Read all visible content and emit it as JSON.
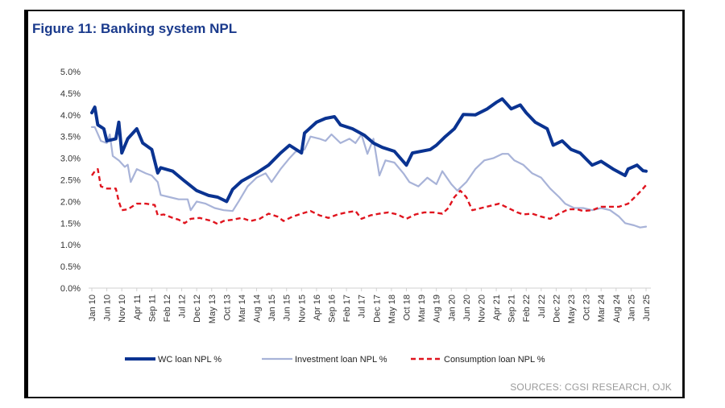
{
  "figure": {
    "title": "Figure 11: Banking system NPL",
    "source": "SOURCES: CGSI RESEARCH, OJK"
  },
  "colors": {
    "wc": "#0a3391",
    "investment": "#a8b3d8",
    "consumption": "#e0141e",
    "title": "#1a3a8c",
    "source": "#9a9a9a"
  },
  "chart_data": {
    "type": "line",
    "title": "Figure 11: Banking system NPL",
    "xlabel": "",
    "ylabel": "",
    "ylim": [
      0,
      5.0
    ],
    "yticks": [
      "0.0%",
      "0.5%",
      "1.0%",
      "1.5%",
      "2.0%",
      "2.5%",
      "3.0%",
      "3.5%",
      "4.0%",
      "4.5%",
      "5.0%"
    ],
    "x_start": "Jan 10",
    "x_end": "Jun 25",
    "x_tick_interval_months": 5,
    "xticks": [
      "Jan 10",
      "Jun 10",
      "Nov 10",
      "Apr 11",
      "Sep 11",
      "Feb 12",
      "Jul 12",
      "Dec 12",
      "May 13",
      "Oct 13",
      "Mar 14",
      "Aug 14",
      "Jan 15",
      "Jun 15",
      "Nov 15",
      "Apr 16",
      "Sep 16",
      "Feb 17",
      "Jul 17",
      "Dec 17",
      "May 18",
      "Oct 18",
      "Mar 19",
      "Aug 19",
      "Jan 20",
      "Jun 20",
      "Nov 20",
      "Apr 21",
      "Sep 21",
      "Feb 22",
      "Jul 22",
      "Dec 22",
      "May 23",
      "Oct 23",
      "Mar 24",
      "Aug 24",
      "Jan 25",
      "Jun 25"
    ],
    "legend_position": "bottom",
    "grid": false,
    "series": [
      {
        "name": "WC loan NPL %",
        "style": "solid-thick",
        "points_month_index_value": [
          [
            0,
            4.05
          ],
          [
            1,
            4.18
          ],
          [
            2,
            3.77
          ],
          [
            4,
            3.68
          ],
          [
            5,
            3.4
          ],
          [
            8,
            3.45
          ],
          [
            9,
            3.83
          ],
          [
            10,
            3.12
          ],
          [
            12,
            3.45
          ],
          [
            15,
            3.68
          ],
          [
            17,
            3.35
          ],
          [
            20,
            3.2
          ],
          [
            22,
            2.66
          ],
          [
            23,
            2.78
          ],
          [
            27,
            2.7
          ],
          [
            31,
            2.47
          ],
          [
            35,
            2.25
          ],
          [
            39,
            2.14
          ],
          [
            42,
            2.1
          ],
          [
            45,
            2.0
          ],
          [
            47,
            2.28
          ],
          [
            50,
            2.47
          ],
          [
            55,
            2.66
          ],
          [
            59,
            2.84
          ],
          [
            63,
            3.12
          ],
          [
            66,
            3.3
          ],
          [
            70,
            3.12
          ],
          [
            71,
            3.58
          ],
          [
            75,
            3.83
          ],
          [
            78,
            3.92
          ],
          [
            81,
            3.96
          ],
          [
            83,
            3.77
          ],
          [
            87,
            3.68
          ],
          [
            91,
            3.53
          ],
          [
            94,
            3.35
          ],
          [
            97,
            3.25
          ],
          [
            101,
            3.16
          ],
          [
            105,
            2.84
          ],
          [
            107,
            3.12
          ],
          [
            113,
            3.2
          ],
          [
            115,
            3.3
          ],
          [
            118,
            3.5
          ],
          [
            121,
            3.68
          ],
          [
            124,
            4.01
          ],
          [
            128,
            4.0
          ],
          [
            132,
            4.14
          ],
          [
            135,
            4.29
          ],
          [
            137,
            4.37
          ],
          [
            140,
            4.14
          ],
          [
            143,
            4.23
          ],
          [
            145,
            4.05
          ],
          [
            148,
            3.83
          ],
          [
            152,
            3.68
          ],
          [
            154,
            3.3
          ],
          [
            157,
            3.4
          ],
          [
            160,
            3.2
          ],
          [
            163,
            3.12
          ],
          [
            167,
            2.84
          ],
          [
            170,
            2.93
          ],
          [
            174,
            2.75
          ],
          [
            178,
            2.6
          ],
          [
            179,
            2.75
          ],
          [
            182,
            2.84
          ],
          [
            184,
            2.71
          ],
          [
            185,
            2.7
          ]
        ]
      },
      {
        "name": "Investment loan NPL %",
        "style": "solid-light",
        "points_month_index_value": [
          [
            0,
            3.72
          ],
          [
            1,
            3.72
          ],
          [
            3,
            3.4
          ],
          [
            5,
            3.35
          ],
          [
            6,
            3.55
          ],
          [
            7,
            3.05
          ],
          [
            9,
            2.95
          ],
          [
            11,
            2.8
          ],
          [
            12,
            2.85
          ],
          [
            13,
            2.45
          ],
          [
            15,
            2.75
          ],
          [
            18,
            2.65
          ],
          [
            20,
            2.6
          ],
          [
            22,
            2.45
          ],
          [
            23,
            2.15
          ],
          [
            26,
            2.1
          ],
          [
            29,
            2.05
          ],
          [
            32,
            2.05
          ],
          [
            33,
            1.8
          ],
          [
            35,
            2.0
          ],
          [
            38,
            1.95
          ],
          [
            41,
            1.85
          ],
          [
            44,
            1.8
          ],
          [
            47,
            1.78
          ],
          [
            49,
            2.0
          ],
          [
            52,
            2.35
          ],
          [
            55,
            2.55
          ],
          [
            58,
            2.65
          ],
          [
            60,
            2.45
          ],
          [
            63,
            2.75
          ],
          [
            66,
            3.0
          ],
          [
            68,
            3.15
          ],
          [
            71,
            3.2
          ],
          [
            73,
            3.5
          ],
          [
            76,
            3.45
          ],
          [
            78,
            3.4
          ],
          [
            80,
            3.55
          ],
          [
            83,
            3.35
          ],
          [
            86,
            3.45
          ],
          [
            88,
            3.35
          ],
          [
            90,
            3.55
          ],
          [
            92,
            3.1
          ],
          [
            94,
            3.45
          ],
          [
            96,
            2.6
          ],
          [
            98,
            2.95
          ],
          [
            101,
            2.9
          ],
          [
            104,
            2.65
          ],
          [
            106,
            2.45
          ],
          [
            109,
            2.35
          ],
          [
            112,
            2.55
          ],
          [
            115,
            2.4
          ],
          [
            117,
            2.7
          ],
          [
            120,
            2.4
          ],
          [
            122,
            2.25
          ],
          [
            125,
            2.45
          ],
          [
            128,
            2.75
          ],
          [
            131,
            2.95
          ],
          [
            134,
            3.0
          ],
          [
            137,
            3.1
          ],
          [
            139,
            3.1
          ],
          [
            141,
            2.95
          ],
          [
            144,
            2.85
          ],
          [
            147,
            2.65
          ],
          [
            150,
            2.55
          ],
          [
            153,
            2.3
          ],
          [
            156,
            2.1
          ],
          [
            158,
            1.95
          ],
          [
            161,
            1.85
          ],
          [
            164,
            1.85
          ],
          [
            167,
            1.8
          ],
          [
            170,
            1.85
          ],
          [
            173,
            1.8
          ],
          [
            176,
            1.65
          ],
          [
            178,
            1.5
          ],
          [
            181,
            1.45
          ],
          [
            183,
            1.4
          ],
          [
            185,
            1.42
          ]
        ]
      },
      {
        "name": "Consumption loan NPL %",
        "style": "dashed",
        "points_month_index_value": [
          [
            0,
            2.6
          ],
          [
            1,
            2.7
          ],
          [
            2,
            2.75
          ],
          [
            3,
            2.35
          ],
          [
            5,
            2.3
          ],
          [
            8,
            2.3
          ],
          [
            9,
            2.0
          ],
          [
            10,
            1.8
          ],
          [
            12,
            1.82
          ],
          [
            15,
            1.95
          ],
          [
            18,
            1.95
          ],
          [
            21,
            1.92
          ],
          [
            22,
            1.68
          ],
          [
            24,
            1.7
          ],
          [
            27,
            1.62
          ],
          [
            29,
            1.58
          ],
          [
            31,
            1.5
          ],
          [
            33,
            1.6
          ],
          [
            36,
            1.62
          ],
          [
            40,
            1.55
          ],
          [
            42,
            1.48
          ],
          [
            44,
            1.55
          ],
          [
            47,
            1.58
          ],
          [
            50,
            1.62
          ],
          [
            53,
            1.55
          ],
          [
            56,
            1.6
          ],
          [
            59,
            1.72
          ],
          [
            62,
            1.65
          ],
          [
            64,
            1.55
          ],
          [
            67,
            1.65
          ],
          [
            70,
            1.72
          ],
          [
            73,
            1.78
          ],
          [
            76,
            1.68
          ],
          [
            79,
            1.62
          ],
          [
            82,
            1.7
          ],
          [
            85,
            1.75
          ],
          [
            88,
            1.78
          ],
          [
            90,
            1.6
          ],
          [
            93,
            1.68
          ],
          [
            96,
            1.72
          ],
          [
            99,
            1.75
          ],
          [
            102,
            1.7
          ],
          [
            105,
            1.6
          ],
          [
            108,
            1.7
          ],
          [
            111,
            1.75
          ],
          [
            114,
            1.75
          ],
          [
            117,
            1.72
          ],
          [
            119,
            1.85
          ],
          [
            121,
            2.1
          ],
          [
            123,
            2.25
          ],
          [
            125,
            2.1
          ],
          [
            127,
            1.8
          ],
          [
            130,
            1.85
          ],
          [
            133,
            1.9
          ],
          [
            136,
            1.95
          ],
          [
            139,
            1.85
          ],
          [
            142,
            1.75
          ],
          [
            144,
            1.7
          ],
          [
            147,
            1.72
          ],
          [
            150,
            1.65
          ],
          [
            153,
            1.6
          ],
          [
            156,
            1.72
          ],
          [
            159,
            1.82
          ],
          [
            162,
            1.82
          ],
          [
            164,
            1.78
          ],
          [
            167,
            1.8
          ],
          [
            170,
            1.88
          ],
          [
            173,
            1.88
          ],
          [
            176,
            1.88
          ],
          [
            179,
            1.95
          ],
          [
            182,
            2.15
          ],
          [
            184,
            2.3
          ],
          [
            185,
            2.38
          ]
        ]
      }
    ]
  }
}
